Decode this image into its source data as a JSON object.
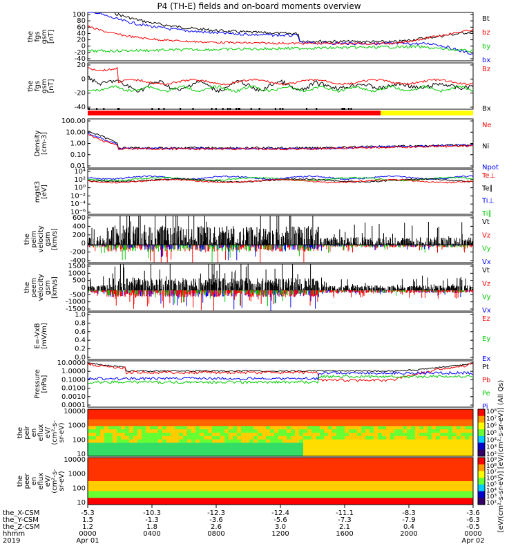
{
  "title": "P4 (TH-E) fields and on-board moments overview",
  "panels": [
    {
      "id": "fgs-gsm",
      "ylabel": [
        "the",
        "fgs",
        "gsm",
        "[nT]"
      ],
      "ticks": [
        "100",
        "80",
        "60",
        "40",
        "20",
        "0",
        "-20",
        "-40"
      ],
      "ylim": [
        -40,
        100
      ],
      "legend": [
        {
          "label": "Bt",
          "color": "#000000"
        },
        {
          "label": "bz",
          "color": "#ff0000"
        },
        {
          "label": "by",
          "color": "#00cc00"
        },
        {
          "label": "bx",
          "color": "#0000ff"
        }
      ]
    },
    {
      "id": "fgs-dsl",
      "ylabel": [
        "the",
        "fgs",
        "gsm",
        "[nT]"
      ],
      "ticks": [
        "20",
        "0",
        "-20",
        "-40"
      ],
      "ylim": [
        -50,
        30
      ],
      "legend": [
        {
          "label": "Bz",
          "color": "#ff0000"
        },
        {
          "label": "Bx",
          "color": "#000000"
        }
      ]
    },
    {
      "id": "mode-bar",
      "ylabel": [],
      "ticks": [],
      "legend": []
    },
    {
      "id": "density",
      "ylabel": [
        "Density",
        "[cm-3]"
      ],
      "ticks": [
        "100.00",
        "10.00",
        "1.00",
        "0.10",
        "0.01"
      ],
      "ylim": [
        0.003,
        300
      ],
      "log": true,
      "legend": [
        {
          "label": "Ne",
          "color": "#ff0000"
        },
        {
          "label": "Ni",
          "color": "#000000"
        },
        {
          "label": "Npot",
          "color": "#0000ff"
        }
      ]
    },
    {
      "id": "temperature",
      "ylabel": [
        "mgst3",
        "[eV]"
      ],
      "ticks": [
        "10⁴",
        "10²",
        "10⁰",
        "10⁻²",
        "10⁻⁴",
        "10⁻⁶"
      ],
      "ylim": [
        -6,
        4
      ],
      "legend": [
        {
          "label": "Te⊥",
          "color": "#ff0000"
        },
        {
          "label": "Te∥",
          "color": "#000000"
        },
        {
          "label": "Ti⊥",
          "color": "#0000ff"
        },
        {
          "label": "Ti∥",
          "color": "#00cc00"
        }
      ]
    },
    {
      "id": "peim-velocity",
      "ylabel": [
        "the",
        "peim",
        "velocity",
        "gsm",
        "[km/s]"
      ],
      "ticks": [
        "600",
        "400",
        "200",
        "0",
        "-200",
        "-400"
      ],
      "ylim": [
        -400,
        650
      ],
      "legend": [
        {
          "label": "Vt",
          "color": "#000000"
        },
        {
          "label": "Vz",
          "color": "#ff0000"
        },
        {
          "label": "Vy",
          "color": "#00cc00"
        },
        {
          "label": "Vx",
          "color": "#0000ff"
        }
      ]
    },
    {
      "id": "peem-velocity",
      "ylabel": [
        "the",
        "peem",
        "velocity",
        "gsm",
        "[km/s]"
      ],
      "ticks": [
        "1500",
        "1000",
        "500",
        "0",
        "-500",
        "-1000",
        "-1500"
      ],
      "ylim": [
        -1500,
        1600
      ],
      "legend": [
        {
          "label": "Vt",
          "color": "#000000"
        },
        {
          "label": "Vz",
          "color": "#ff0000"
        },
        {
          "label": "Vy",
          "color": "#00cc00"
        },
        {
          "label": "Vx",
          "color": "#0000ff"
        }
      ]
    },
    {
      "id": "efield",
      "ylabel": [
        "E=-VxB",
        "[mV/m]"
      ],
      "ticks": [
        "1.0",
        "0.8",
        "0.6",
        "0.4",
        "0.2",
        "0.0"
      ],
      "ylim": [
        0,
        1
      ],
      "legend": [
        {
          "label": "Ez",
          "color": "#ff0000"
        },
        {
          "label": "Ey",
          "color": "#00cc00"
        },
        {
          "label": "Ex",
          "color": "#0000ff"
        }
      ]
    },
    {
      "id": "pressure",
      "ylabel": [
        "Pressure",
        "[nPa]"
      ],
      "ticks": [
        "10.0000",
        "1.0000",
        "0.1000",
        "0.0100",
        "0.0010",
        "0.0001"
      ],
      "ylim": [
        0.0001,
        10
      ],
      "log": true,
      "legend": [
        {
          "label": "Pt",
          "color": "#000000"
        },
        {
          "label": "Pb",
          "color": "#ff0000"
        },
        {
          "label": "Pe",
          "color": "#00cc00"
        },
        {
          "label": "Pi",
          "color": "#0000ff"
        }
      ]
    },
    {
      "id": "peir-spec",
      "ylabel": [
        "the",
        "peir",
        "en",
        "eflux",
        "eV/",
        "(cm²-s-",
        "sr-eV)"
      ],
      "ticks": [
        "10000",
        "1000",
        "100",
        "10"
      ],
      "cbar": [
        "10⁸",
        "10⁷",
        "10⁶",
        "10⁵",
        "10⁴",
        "10³",
        "10²"
      ]
    },
    {
      "id": "peer-spec",
      "ylabel": [
        "the",
        "peer",
        "en",
        "eflux",
        "eV/",
        "(cm²-s-",
        "sr-eV)"
      ],
      "ticks": [
        "10000",
        "1000",
        "100",
        "10"
      ],
      "cbar": [
        "10⁹",
        "10⁸",
        "10⁷",
        "10⁶",
        "10⁵",
        "10⁴",
        "10³",
        "10²"
      ]
    }
  ],
  "colorbar_label": "[eV/(cm²-s-sr-eV)] [eV/(cm²-s-sr-eV)] (All Qs)",
  "xaxis": {
    "rows": [
      "the_X-CSM",
      "the_Y-CSM",
      "the_Z-CSM",
      "hhmm",
      "2019"
    ],
    "columns": [
      [
        "-5.3",
        "1.5",
        "1.2",
        "0000",
        "Apr 01"
      ],
      [
        "-10.3",
        "-1.3",
        "1.8",
        "0400",
        ""
      ],
      [
        "-12.3",
        "-3.6",
        "2.6",
        "0800",
        ""
      ],
      [
        "-12.4",
        "-5.6",
        "3.0",
        "1200",
        ""
      ],
      [
        "-11.1",
        "-7.3",
        "2.1",
        "1600",
        ""
      ],
      [
        "-8.3",
        "-7.9",
        "0.4",
        "2000",
        ""
      ],
      [
        "-3.6",
        "-6.3",
        "-0.5",
        "0000",
        "Apr 02"
      ]
    ]
  },
  "chart_data": {
    "type": "line",
    "title": "P4 (TH-E) fields and on-board moments overview",
    "x": [
      "0000",
      "0400",
      "0800",
      "1200",
      "1600",
      "2000",
      "0000"
    ],
    "series": [
      {
        "name": "Bt",
        "values": [
          95,
          60,
          40,
          38,
          15,
          20,
          58
        ]
      },
      {
        "name": "bz",
        "values": [
          45,
          22,
          15,
          12,
          8,
          15,
          55
        ]
      },
      {
        "name": "by",
        "values": [
          -10,
          2,
          5,
          2,
          5,
          5,
          -15
        ]
      },
      {
        "name": "bx",
        "values": [
          80,
          55,
          35,
          30,
          10,
          10,
          -20
        ]
      },
      {
        "name": "Ne",
        "values": [
          15,
          0.35,
          0.3,
          0.3,
          0.4,
          0.7,
          1.2
        ]
      },
      {
        "name": "Ni",
        "values": [
          25,
          0.4,
          0.35,
          0.35,
          0.5,
          0.8,
          1.3
        ]
      },
      {
        "name": "Npot",
        "values": [
          10,
          0.4,
          0.35,
          0.3,
          0.6,
          0.9,
          1.4
        ]
      },
      {
        "name": "Pt",
        "values": [
          5,
          1.2,
          0.9,
          0.8,
          0.6,
          0.8,
          4.5
        ]
      },
      {
        "name": "Pb",
        "values": [
          4,
          0.9,
          0.6,
          0.5,
          0.08,
          0.1,
          4
        ]
      },
      {
        "name": "Pe",
        "values": [
          0.08,
          0.05,
          0.05,
          0.05,
          0.2,
          0.25,
          0.3
        ]
      },
      {
        "name": "Pi",
        "values": [
          0.3,
          0.15,
          0.12,
          0.1,
          0.5,
          0.7,
          0.9
        ]
      }
    ],
    "xlabel": "hhmm",
    "mode_bar": [
      {
        "from": 0,
        "to": 0.76,
        "color": "#ff0000"
      },
      {
        "from": 0.76,
        "to": 1,
        "color": "#ffff00"
      }
    ]
  }
}
